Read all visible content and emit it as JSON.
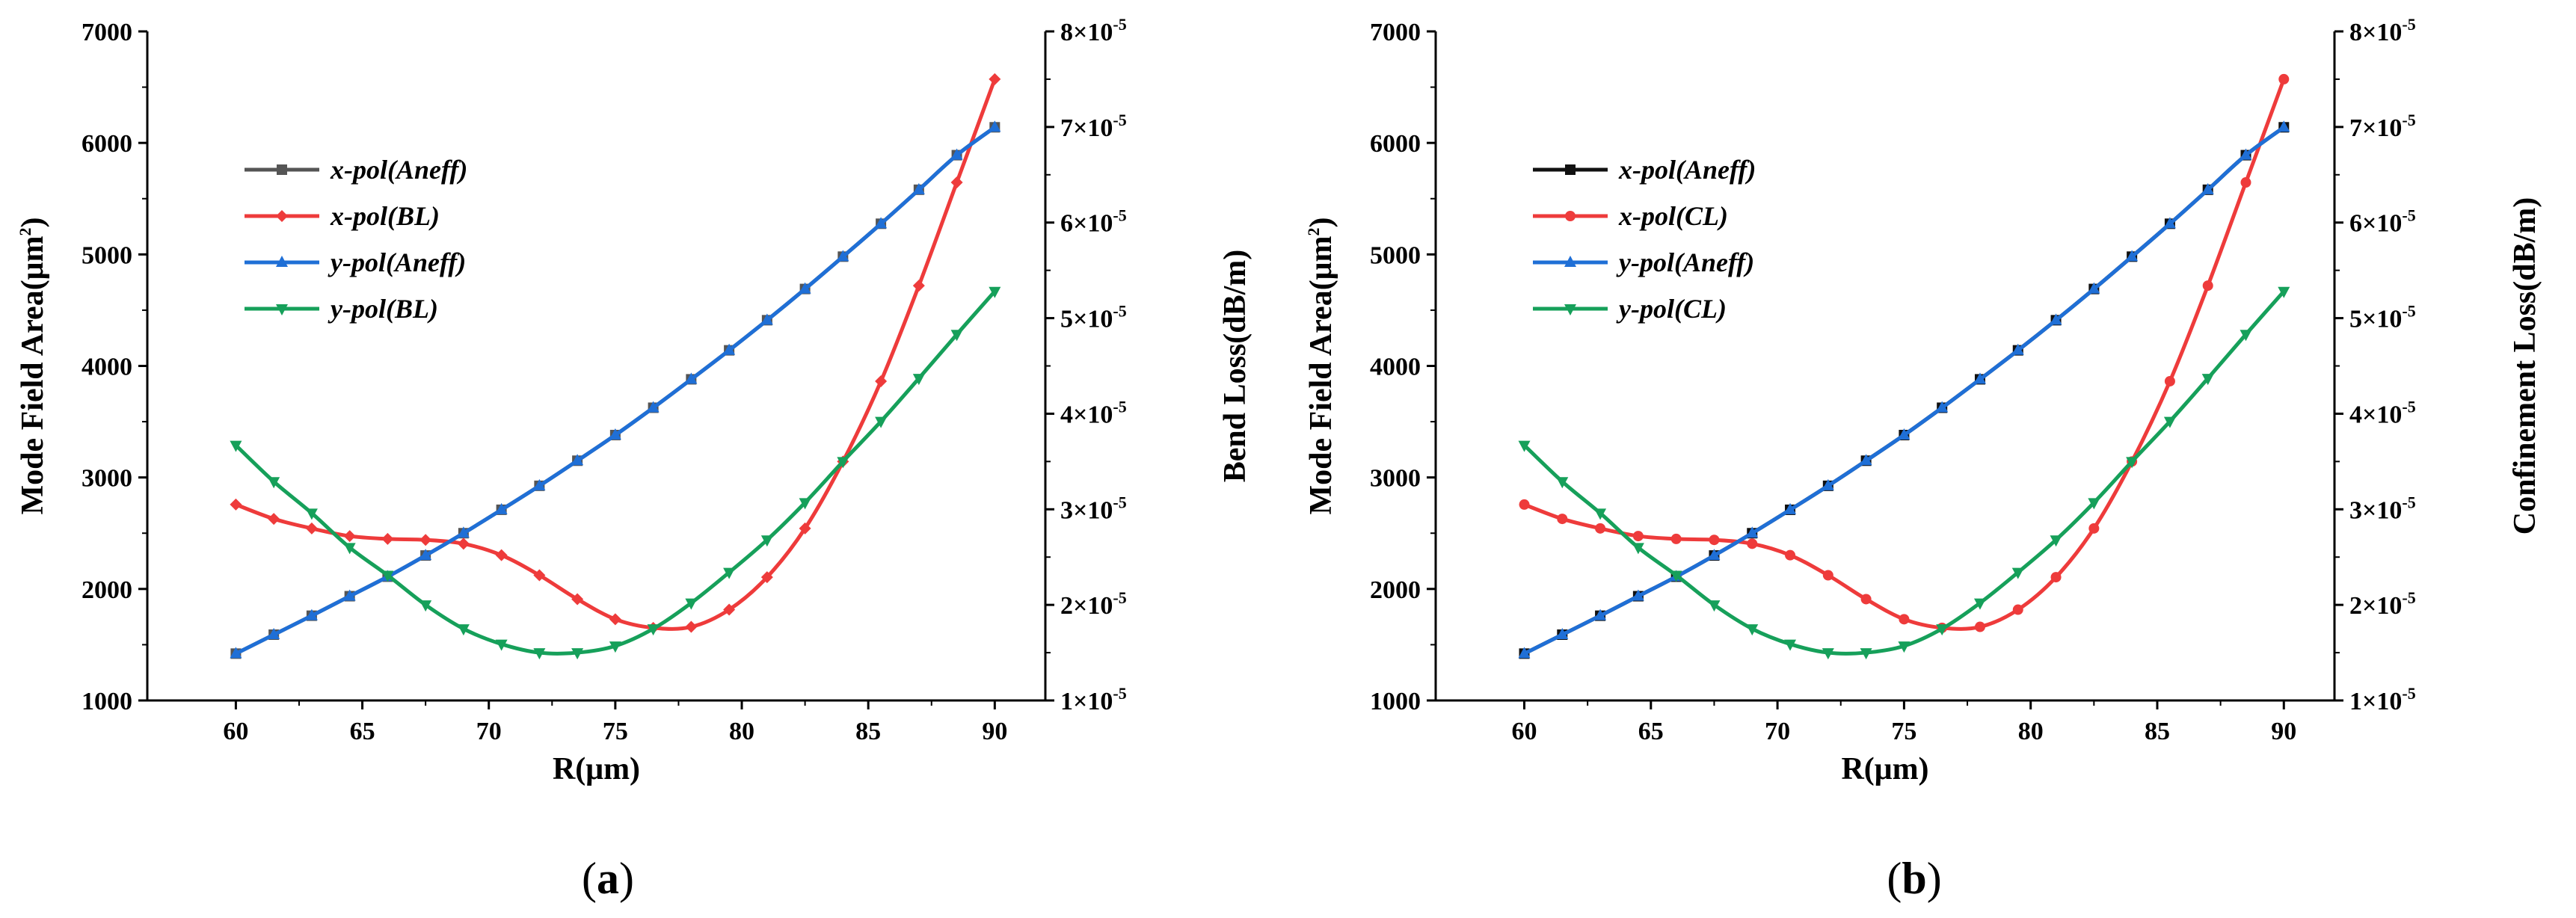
{
  "chart_data": [
    {
      "type": "line",
      "panel_label": "a",
      "title": "",
      "xlabel": "R(μm)",
      "ylabel_left": "Mode Field Area(μm²)",
      "ylabel_left_parts": [
        "Mode Field Area(μm",
        "2",
        ")"
      ],
      "ylabel_right": "Bend Loss(dB/m)",
      "x": [
        60,
        61.5,
        63,
        64.5,
        66,
        67.5,
        69,
        70.5,
        72,
        73.5,
        75,
        76.5,
        78,
        79.5,
        81,
        82.5,
        84,
        85.5,
        87,
        88.5,
        90
      ],
      "xlim": [
        56.5,
        92
      ],
      "ylim_left": [
        1000,
        7000
      ],
      "ylim_right": [
        1e-05,
        8e-05
      ],
      "x_ticks": [
        "60",
        "65",
        "70",
        "75",
        "80",
        "85",
        "90"
      ],
      "y_left_ticks": [
        "1000",
        "2000",
        "3000",
        "4000",
        "5000",
        "6000",
        "7000"
      ],
      "y_right_ticks": [
        {
          "base": "1×10",
          "exp": "-5"
        },
        {
          "base": "2×10",
          "exp": "-5"
        },
        {
          "base": "3×10",
          "exp": "-5"
        },
        {
          "base": "4×10",
          "exp": "-5"
        },
        {
          "base": "5×10",
          "exp": "-5"
        },
        {
          "base": "6×10",
          "exp": "-5"
        },
        {
          "base": "7×10",
          "exp": "-5"
        },
        {
          "base": "8×10",
          "exp": "-5"
        }
      ],
      "legend_position": "upper-left",
      "series": [
        {
          "name": "x-pol(Aneff)",
          "axis": "left",
          "color": "#555555",
          "marker": "square",
          "values": [
            1420,
            1590,
            1760,
            1935,
            2110,
            2300,
            2500,
            2710,
            2925,
            3150,
            3380,
            3625,
            3880,
            4140,
            4410,
            4690,
            4980,
            5275,
            5580,
            5890,
            6140
          ]
        },
        {
          "name": "x-pol(BL)",
          "axis": "right",
          "color": "#ee3b3b",
          "marker": "diamond",
          "values": [
            3.05e-05,
            2.9e-05,
            2.8e-05,
            2.72e-05,
            2.69e-05,
            2.68e-05,
            2.64e-05,
            2.52e-05,
            2.31e-05,
            2.06e-05,
            1.85e-05,
            1.76e-05,
            1.77e-05,
            1.95e-05,
            2.29e-05,
            2.8e-05,
            3.5e-05,
            4.34e-05,
            5.34e-05,
            6.42e-05,
            7.5e-05
          ]
        },
        {
          "name": "y-pol(Aneff)",
          "axis": "left",
          "color": "#1f6fd6",
          "marker": "triangle-up",
          "values": [
            1420,
            1590,
            1760,
            1935,
            2110,
            2300,
            2500,
            2710,
            2925,
            3150,
            3380,
            3625,
            3880,
            4140,
            4410,
            4690,
            4980,
            5275,
            5580,
            5890,
            6140
          ]
        },
        {
          "name": "y-pol(BL)",
          "axis": "right",
          "color": "#16a05a",
          "marker": "triangle-down",
          "values": [
            3.67e-05,
            3.29e-05,
            2.96e-05,
            2.6e-05,
            2.31e-05,
            2e-05,
            1.75e-05,
            1.59e-05,
            1.5e-05,
            1.5e-05,
            1.57e-05,
            1.75e-05,
            2.02e-05,
            2.34e-05,
            2.68e-05,
            3.07e-05,
            3.5e-05,
            3.92e-05,
            4.37e-05,
            4.83e-05,
            5.28e-05
          ]
        }
      ]
    },
    {
      "type": "line",
      "panel_label": "b",
      "title": "",
      "xlabel": "R(μm)",
      "ylabel_left": "Mode Field Area(μm²)",
      "ylabel_left_parts": [
        "Mode Field Area(μm",
        "2",
        ")"
      ],
      "ylabel_right": "Confinement Loss(dB/m)",
      "x": [
        60,
        61.5,
        63,
        64.5,
        66,
        67.5,
        69,
        70.5,
        72,
        73.5,
        75,
        76.5,
        78,
        79.5,
        81,
        82.5,
        84,
        85.5,
        87,
        88.5,
        90
      ],
      "xlim": [
        56.5,
        92
      ],
      "ylim_left": [
        1000,
        7000
      ],
      "ylim_right": [
        1e-05,
        8e-05
      ],
      "x_ticks": [
        "60",
        "65",
        "70",
        "75",
        "80",
        "85",
        "90"
      ],
      "y_left_ticks": [
        "1000",
        "2000",
        "3000",
        "4000",
        "5000",
        "6000",
        "7000"
      ],
      "y_right_ticks": [
        {
          "base": "1×10",
          "exp": "-5"
        },
        {
          "base": "2×10",
          "exp": "-5"
        },
        {
          "base": "3×10",
          "exp": "-5"
        },
        {
          "base": "4×10",
          "exp": "-5"
        },
        {
          "base": "5×10",
          "exp": "-5"
        },
        {
          "base": "6×10",
          "exp": "-5"
        },
        {
          "base": "7×10",
          "exp": "-5"
        },
        {
          "base": "8×10",
          "exp": "-5"
        }
      ],
      "legend_position": "upper-left",
      "series": [
        {
          "name": "x-pol(Aneff)",
          "axis": "left",
          "color": "#111111",
          "marker": "square",
          "values": [
            1420,
            1590,
            1760,
            1935,
            2110,
            2300,
            2500,
            2710,
            2925,
            3150,
            3380,
            3625,
            3880,
            4140,
            4410,
            4690,
            4980,
            5275,
            5580,
            5890,
            6140
          ]
        },
        {
          "name": "x-pol(CL)",
          "axis": "right",
          "color": "#ee3b3b",
          "marker": "circle",
          "values": [
            3.05e-05,
            2.9e-05,
            2.8e-05,
            2.72e-05,
            2.69e-05,
            2.68e-05,
            2.64e-05,
            2.52e-05,
            2.31e-05,
            2.06e-05,
            1.85e-05,
            1.76e-05,
            1.77e-05,
            1.95e-05,
            2.29e-05,
            2.8e-05,
            3.5e-05,
            4.34e-05,
            5.34e-05,
            6.42e-05,
            7.5e-05
          ]
        },
        {
          "name": "y-pol(Aneff)",
          "axis": "left",
          "color": "#1f6fd6",
          "marker": "triangle-up",
          "values": [
            1420,
            1590,
            1760,
            1935,
            2110,
            2300,
            2500,
            2710,
            2925,
            3150,
            3380,
            3625,
            3880,
            4140,
            4410,
            4690,
            4980,
            5275,
            5580,
            5890,
            6140
          ]
        },
        {
          "name": "y-pol(CL)",
          "axis": "right",
          "color": "#16a05a",
          "marker": "triangle-down",
          "values": [
            3.67e-05,
            3.29e-05,
            2.96e-05,
            2.6e-05,
            2.31e-05,
            2e-05,
            1.75e-05,
            1.59e-05,
            1.5e-05,
            1.5e-05,
            1.57e-05,
            1.75e-05,
            2.02e-05,
            2.34e-05,
            2.68e-05,
            3.07e-05,
            3.5e-05,
            3.92e-05,
            4.37e-05,
            4.83e-05,
            5.28e-05
          ]
        }
      ]
    }
  ]
}
